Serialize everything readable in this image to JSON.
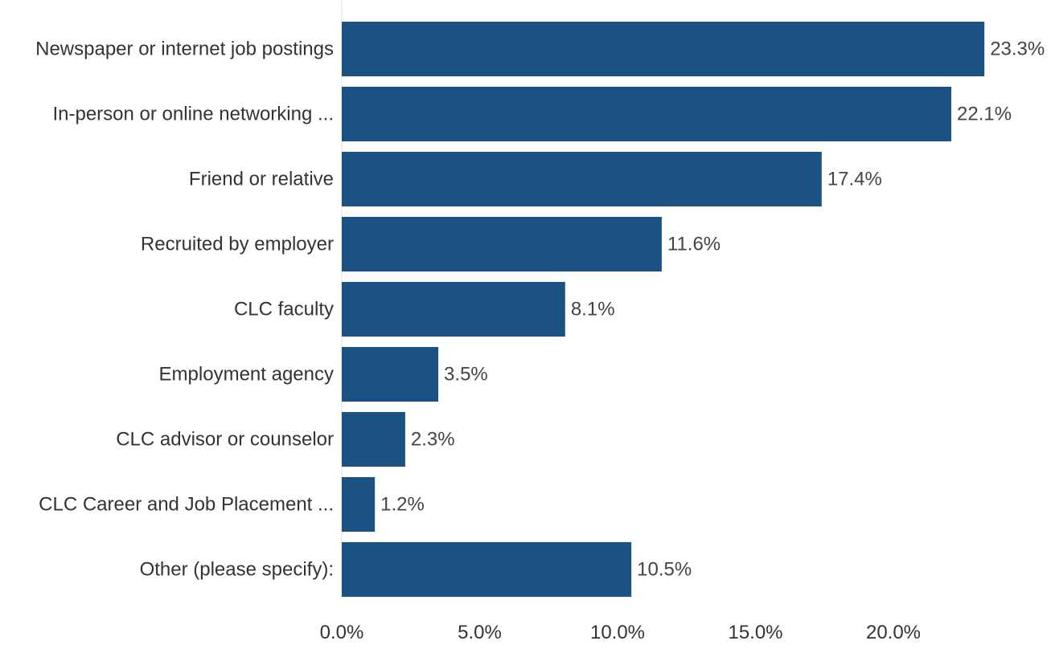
{
  "chart_data": {
    "type": "bar",
    "orientation": "horizontal",
    "categories": [
      "Newspaper or internet job postings",
      "In-person or online networking ...",
      "Friend or relative",
      "Recruited by employer",
      "CLC faculty",
      "Employment agency",
      "CLC advisor or counselor",
      "CLC Career and Job Placement ...",
      "Other (please specify):"
    ],
    "values": [
      23.3,
      22.1,
      17.4,
      11.6,
      8.1,
      3.5,
      2.3,
      1.2,
      10.5
    ],
    "value_labels": [
      "23.3%",
      "22.1%",
      "17.4%",
      "11.6%",
      "8.1%",
      "3.5%",
      "2.3%",
      "1.2%",
      "10.5%"
    ],
    "xticks": [
      0,
      5,
      10,
      15,
      20
    ],
    "xtick_labels": [
      "0.0%",
      "5.0%",
      "10.0%",
      "15.0%",
      "20.0%"
    ],
    "xlim": [
      0,
      25
    ],
    "title": "",
    "xlabel": "",
    "ylabel": "",
    "grid": false,
    "legend": "none",
    "colors": {
      "bar": "#1a5283",
      "axis_line": "#e0e0e0",
      "text": "#333333",
      "value_text": "#444444"
    }
  }
}
